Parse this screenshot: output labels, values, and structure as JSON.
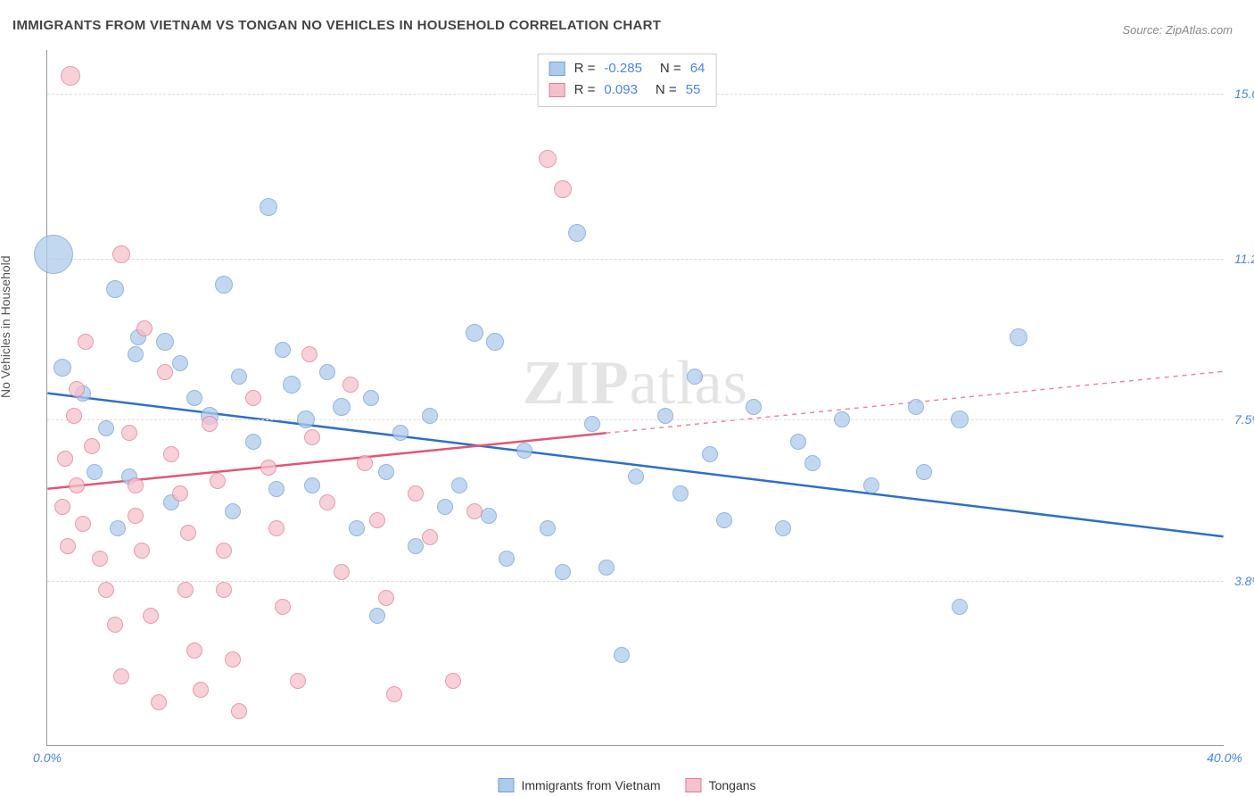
{
  "title": "IMMIGRANTS FROM VIETNAM VS TONGAN NO VEHICLES IN HOUSEHOLD CORRELATION CHART",
  "source_label": "Source: ZipAtlas.com",
  "y_axis_label": "No Vehicles in Household",
  "watermark": "ZIPatlas",
  "chart": {
    "type": "scatter",
    "xlim": [
      0,
      40
    ],
    "ylim": [
      0,
      16
    ],
    "x_ticks": [
      {
        "v": 0,
        "label": "0.0%"
      },
      {
        "v": 40,
        "label": "40.0%"
      }
    ],
    "y_ticks": [
      {
        "v": 3.8,
        "label": "3.8%"
      },
      {
        "v": 7.5,
        "label": "7.5%"
      },
      {
        "v": 11.2,
        "label": "11.2%"
      },
      {
        "v": 15.0,
        "label": "15.0%"
      }
    ],
    "grid_color": "#e0e0e0",
    "background_color": "#ffffff",
    "series": [
      {
        "id": "vietnam",
        "label": "Immigrants from Vietnam",
        "marker_fill": "#aecbeb",
        "marker_stroke": "#6fa0d9",
        "marker_opacity": 0.75,
        "trend_color": "#2f6fc4",
        "R": -0.285,
        "N": 64,
        "trend": {
          "x1": 0,
          "y1": 8.1,
          "x2": 40,
          "y2": 4.8,
          "solid_until_x": 40
        },
        "points": [
          {
            "x": 0.2,
            "y": 11.3,
            "r": 22
          },
          {
            "x": 0.5,
            "y": 8.7,
            "r": 10
          },
          {
            "x": 2.3,
            "y": 10.5,
            "r": 10
          },
          {
            "x": 3.1,
            "y": 9.4,
            "r": 9
          },
          {
            "x": 3.0,
            "y": 9.0,
            "r": 9
          },
          {
            "x": 1.2,
            "y": 8.1,
            "r": 9
          },
          {
            "x": 2.0,
            "y": 7.3,
            "r": 9
          },
          {
            "x": 2.8,
            "y": 6.2,
            "r": 9
          },
          {
            "x": 4.0,
            "y": 9.3,
            "r": 10
          },
          {
            "x": 4.5,
            "y": 8.8,
            "r": 9
          },
          {
            "x": 5.0,
            "y": 8.0,
            "r": 9
          },
          {
            "x": 5.5,
            "y": 7.6,
            "r": 10
          },
          {
            "x": 6.0,
            "y": 10.6,
            "r": 10
          },
          {
            "x": 6.5,
            "y": 8.5,
            "r": 9
          },
          {
            "x": 7.0,
            "y": 7.0,
            "r": 9
          },
          {
            "x": 7.5,
            "y": 12.4,
            "r": 10
          },
          {
            "x": 8.0,
            "y": 9.1,
            "r": 9
          },
          {
            "x": 8.3,
            "y": 8.3,
            "r": 10
          },
          {
            "x": 8.8,
            "y": 7.5,
            "r": 10
          },
          {
            "x": 9.0,
            "y": 6.0,
            "r": 9
          },
          {
            "x": 9.5,
            "y": 8.6,
            "r": 9
          },
          {
            "x": 10.0,
            "y": 7.8,
            "r": 10
          },
          {
            "x": 10.5,
            "y": 5.0,
            "r": 9
          },
          {
            "x": 11.0,
            "y": 8.0,
            "r": 9
          },
          {
            "x": 11.5,
            "y": 6.3,
            "r": 9
          },
          {
            "x": 12.0,
            "y": 7.2,
            "r": 9
          },
          {
            "x": 12.5,
            "y": 4.6,
            "r": 9
          },
          {
            "x": 13.0,
            "y": 7.6,
            "r": 9
          },
          {
            "x": 13.5,
            "y": 5.5,
            "r": 9
          },
          {
            "x": 11.2,
            "y": 3.0,
            "r": 9
          },
          {
            "x": 14.0,
            "y": 6.0,
            "r": 9
          },
          {
            "x": 14.5,
            "y": 9.5,
            "r": 10
          },
          {
            "x": 15.2,
            "y": 9.3,
            "r": 10
          },
          {
            "x": 15.0,
            "y": 5.3,
            "r": 9
          },
          {
            "x": 15.6,
            "y": 4.3,
            "r": 9
          },
          {
            "x": 16.2,
            "y": 6.8,
            "r": 9
          },
          {
            "x": 17.0,
            "y": 5.0,
            "r": 9
          },
          {
            "x": 17.5,
            "y": 4.0,
            "r": 9
          },
          {
            "x": 18.0,
            "y": 11.8,
            "r": 10
          },
          {
            "x": 18.5,
            "y": 7.4,
            "r": 9
          },
          {
            "x": 19.0,
            "y": 4.1,
            "r": 9
          },
          {
            "x": 19.5,
            "y": 2.1,
            "r": 9
          },
          {
            "x": 20.0,
            "y": 6.2,
            "r": 9
          },
          {
            "x": 21.0,
            "y": 7.6,
            "r": 9
          },
          {
            "x": 21.5,
            "y": 5.8,
            "r": 9
          },
          {
            "x": 22.0,
            "y": 8.5,
            "r": 9
          },
          {
            "x": 22.5,
            "y": 6.7,
            "r": 9
          },
          {
            "x": 23.0,
            "y": 5.2,
            "r": 9
          },
          {
            "x": 24.0,
            "y": 7.8,
            "r": 9
          },
          {
            "x": 25.0,
            "y": 5.0,
            "r": 9
          },
          {
            "x": 26.0,
            "y": 6.5,
            "r": 9
          },
          {
            "x": 27.0,
            "y": 7.5,
            "r": 9
          },
          {
            "x": 28.0,
            "y": 6.0,
            "r": 9
          },
          {
            "x": 31.0,
            "y": 7.5,
            "r": 10
          },
          {
            "x": 31.0,
            "y": 3.2,
            "r": 9
          },
          {
            "x": 29.5,
            "y": 7.8,
            "r": 9
          },
          {
            "x": 29.8,
            "y": 6.3,
            "r": 9
          },
          {
            "x": 33.0,
            "y": 9.4,
            "r": 10
          },
          {
            "x": 25.5,
            "y": 7.0,
            "r": 9
          },
          {
            "x": 4.2,
            "y": 5.6,
            "r": 9
          },
          {
            "x": 6.3,
            "y": 5.4,
            "r": 9
          },
          {
            "x": 7.8,
            "y": 5.9,
            "r": 9
          },
          {
            "x": 1.6,
            "y": 6.3,
            "r": 9
          },
          {
            "x": 2.4,
            "y": 5.0,
            "r": 9
          }
        ]
      },
      {
        "id": "tongan",
        "label": "Tongans",
        "marker_fill": "#f5c1cc",
        "marker_stroke": "#e07b94",
        "marker_opacity": 0.75,
        "trend_color": "#e25673",
        "R": 0.093,
        "N": 55,
        "trend": {
          "x1": 0,
          "y1": 5.9,
          "x2": 40,
          "y2": 8.6,
          "solid_until_x": 19
        },
        "points": [
          {
            "x": 0.8,
            "y": 15.4,
            "r": 11
          },
          {
            "x": 1.0,
            "y": 8.2,
            "r": 9
          },
          {
            "x": 1.5,
            "y": 6.9,
            "r": 9
          },
          {
            "x": 1.0,
            "y": 6.0,
            "r": 9
          },
          {
            "x": 1.2,
            "y": 5.1,
            "r": 9
          },
          {
            "x": 1.8,
            "y": 4.3,
            "r": 9
          },
          {
            "x": 2.0,
            "y": 3.6,
            "r": 9
          },
          {
            "x": 2.3,
            "y": 2.8,
            "r": 9
          },
          {
            "x": 2.5,
            "y": 1.6,
            "r": 9
          },
          {
            "x": 2.8,
            "y": 7.2,
            "r": 9
          },
          {
            "x": 3.0,
            "y": 6.0,
            "r": 9
          },
          {
            "x": 3.0,
            "y": 5.3,
            "r": 9
          },
          {
            "x": 3.2,
            "y": 4.5,
            "r": 9
          },
          {
            "x": 3.5,
            "y": 3.0,
            "r": 9
          },
          {
            "x": 3.8,
            "y": 1.0,
            "r": 9
          },
          {
            "x": 4.0,
            "y": 8.6,
            "r": 9
          },
          {
            "x": 4.2,
            "y": 6.7,
            "r": 9
          },
          {
            "x": 4.5,
            "y": 5.8,
            "r": 9
          },
          {
            "x": 4.8,
            "y": 4.9,
            "r": 9
          },
          {
            "x": 5.0,
            "y": 2.2,
            "r": 9
          },
          {
            "x": 5.2,
            "y": 1.3,
            "r": 9
          },
          {
            "x": 5.5,
            "y": 7.4,
            "r": 9
          },
          {
            "x": 5.8,
            "y": 6.1,
            "r": 9
          },
          {
            "x": 6.0,
            "y": 4.5,
            "r": 9
          },
          {
            "x": 6.0,
            "y": 3.6,
            "r": 9
          },
          {
            "x": 6.3,
            "y": 2.0,
            "r": 9
          },
          {
            "x": 6.5,
            "y": 0.8,
            "r": 9
          },
          {
            "x": 7.0,
            "y": 8.0,
            "r": 9
          },
          {
            "x": 7.5,
            "y": 6.4,
            "r": 9
          },
          {
            "x": 7.8,
            "y": 5.0,
            "r": 9
          },
          {
            "x": 8.0,
            "y": 3.2,
            "r": 9
          },
          {
            "x": 8.5,
            "y": 1.5,
            "r": 9
          },
          {
            "x": 2.5,
            "y": 11.3,
            "r": 10
          },
          {
            "x": 9.0,
            "y": 7.1,
            "r": 9
          },
          {
            "x": 9.5,
            "y": 5.6,
            "r": 9
          },
          {
            "x": 10.0,
            "y": 4.0,
            "r": 9
          },
          {
            "x": 10.3,
            "y": 8.3,
            "r": 9
          },
          {
            "x": 10.8,
            "y": 6.5,
            "r": 9
          },
          {
            "x": 11.2,
            "y": 5.2,
            "r": 9
          },
          {
            "x": 11.5,
            "y": 3.4,
            "r": 9
          },
          {
            "x": 11.8,
            "y": 1.2,
            "r": 9
          },
          {
            "x": 12.5,
            "y": 5.8,
            "r": 9
          },
          {
            "x": 13.0,
            "y": 4.8,
            "r": 9
          },
          {
            "x": 13.8,
            "y": 1.5,
            "r": 9
          },
          {
            "x": 14.5,
            "y": 5.4,
            "r": 9
          },
          {
            "x": 1.3,
            "y": 9.3,
            "r": 9
          },
          {
            "x": 0.6,
            "y": 6.6,
            "r": 9
          },
          {
            "x": 0.9,
            "y": 7.6,
            "r": 9
          },
          {
            "x": 3.3,
            "y": 9.6,
            "r": 9
          },
          {
            "x": 17.0,
            "y": 13.5,
            "r": 10
          },
          {
            "x": 17.5,
            "y": 12.8,
            "r": 10
          },
          {
            "x": 0.5,
            "y": 5.5,
            "r": 9
          },
          {
            "x": 0.7,
            "y": 4.6,
            "r": 9
          },
          {
            "x": 4.7,
            "y": 3.6,
            "r": 9
          },
          {
            "x": 8.9,
            "y": 9.0,
            "r": 9
          }
        ]
      }
    ]
  },
  "stats_legend": {
    "rows": [
      {
        "series": "vietnam",
        "r_text": "-0.285",
        "n_text": "64"
      },
      {
        "series": "tongan",
        "r_text": "0.093",
        "n_text": "55"
      }
    ]
  },
  "bottom_legend": [
    {
      "series": "vietnam"
    },
    {
      "series": "tongan"
    }
  ]
}
